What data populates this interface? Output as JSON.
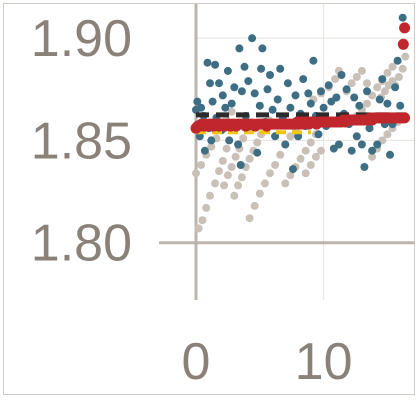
{
  "chart_data": {
    "type": "scatter",
    "title": "",
    "xlabel": "",
    "ylabel": "",
    "xlim": [
      -0.25,
      16.5
    ],
    "ylim": [
      1.7935,
      1.9167
    ],
    "x_ticks": [
      "0",
      "10"
    ],
    "y_ticks": [
      "1.80",
      "1.85",
      "1.90"
    ],
    "grid": true,
    "colors": {
      "blue": "#3d6e84",
      "gray": "#c9c1b8",
      "red": "#c0272d",
      "black": "#2b2b2b",
      "yellow": "#f0c419",
      "axis": "#bdb5ad",
      "grid": "#e6e3df",
      "text": "#8a8178"
    },
    "series": [
      {
        "style": "scatter",
        "color": "blue",
        "points": [
          [
            0.0,
            1.865
          ],
          [
            0.1,
            1.869
          ],
          [
            0.2,
            1.858
          ],
          [
            0.3,
            1.852
          ],
          [
            0.4,
            1.866
          ],
          [
            0.6,
            1.862
          ],
          [
            0.7,
            1.845
          ],
          [
            0.9,
            1.888
          ],
          [
            1.0,
            1.856
          ],
          [
            1.1,
            1.878
          ],
          [
            1.2,
            1.85
          ],
          [
            1.3,
            1.869
          ],
          [
            1.5,
            1.887
          ],
          [
            1.6,
            1.861
          ],
          [
            1.8,
            1.878
          ],
          [
            2.0,
            1.855
          ],
          [
            2.1,
            1.872
          ],
          [
            2.3,
            1.866
          ],
          [
            2.5,
            1.884
          ],
          [
            2.6,
            1.85
          ],
          [
            2.8,
            1.868
          ],
          [
            3.0,
            1.876
          ],
          [
            3.1,
            1.858
          ],
          [
            3.3,
            1.848
          ],
          [
            3.4,
            1.895
          ],
          [
            3.5,
            1.838
          ],
          [
            3.6,
            1.874
          ],
          [
            3.8,
            1.886
          ],
          [
            3.9,
            1.862
          ],
          [
            4.1,
            1.879
          ],
          [
            4.2,
            1.856
          ],
          [
            4.4,
            1.9
          ],
          [
            4.6,
            1.873
          ],
          [
            4.8,
            1.844
          ],
          [
            5.0,
            1.867
          ],
          [
            5.1,
            1.885
          ],
          [
            5.2,
            1.895
          ],
          [
            5.4,
            1.859
          ],
          [
            5.6,
            1.875
          ],
          [
            5.8,
            1.882
          ],
          [
            6.0,
            1.865
          ],
          [
            6.2,
            1.852
          ],
          [
            6.4,
            1.87
          ],
          [
            6.6,
            1.885
          ],
          [
            6.8,
            1.861
          ],
          [
            7.0,
            1.848
          ],
          [
            7.2,
            1.878
          ],
          [
            7.4,
            1.866
          ],
          [
            7.6,
            1.836
          ],
          [
            7.8,
            1.872
          ],
          [
            8.0,
            1.852
          ],
          [
            8.2,
            1.863
          ],
          [
            8.4,
            1.88
          ],
          [
            8.6,
            1.857
          ],
          [
            8.8,
            1.873
          ],
          [
            9.0,
            1.868
          ],
          [
            9.2,
            1.889
          ],
          [
            9.4,
            1.862
          ],
          [
            9.6,
            1.853
          ],
          [
            9.8,
            1.874
          ],
          [
            10.0,
            1.866
          ],
          [
            10.2,
            1.857
          ],
          [
            10.4,
            1.877
          ],
          [
            10.6,
            1.869
          ],
          [
            10.8,
            1.846
          ],
          [
            11.0,
            1.871
          ],
          [
            11.2,
            1.848
          ],
          [
            11.4,
            1.882
          ],
          [
            11.6,
            1.863
          ],
          [
            11.8,
            1.875
          ],
          [
            12.0,
            1.858
          ],
          [
            12.2,
            1.845
          ],
          [
            12.4,
            1.871
          ],
          [
            12.6,
            1.852
          ],
          [
            12.8,
            1.867
          ],
          [
            13.0,
            1.848
          ],
          [
            13.2,
            1.837
          ],
          [
            13.4,
            1.874
          ],
          [
            13.6,
            1.856
          ],
          [
            13.8,
            1.845
          ],
          [
            14.0,
            1.86
          ],
          [
            14.2,
            1.848
          ],
          [
            14.4,
            1.87
          ],
          [
            14.6,
            1.88
          ],
          [
            14.8,
            1.858
          ],
          [
            15.0,
            1.868
          ],
          [
            15.2,
            1.843
          ],
          [
            15.4,
            1.858
          ],
          [
            15.6,
            1.876
          ],
          [
            15.8,
            1.889
          ],
          [
            16.0,
            1.867
          ],
          [
            16.2,
            1.91
          ],
          [
            16.4,
            1.861
          ]
        ]
      },
      {
        "style": "scatter",
        "color": "gray",
        "points": [
          [
            0.2,
            1.807
          ],
          [
            0.5,
            1.811
          ],
          [
            0.8,
            1.817
          ],
          [
            1.1,
            1.823
          ],
          [
            1.5,
            1.829
          ],
          [
            1.8,
            1.835
          ],
          [
            2.1,
            1.84
          ],
          [
            2.4,
            1.846
          ],
          [
            0.0,
            1.834
          ],
          [
            0.4,
            1.838
          ],
          [
            0.8,
            1.843
          ],
          [
            1.2,
            1.847
          ],
          [
            1.6,
            1.851
          ],
          [
            2.0,
            1.856
          ],
          [
            2.4,
            1.86
          ],
          [
            2.8,
            1.864
          ],
          [
            2.2,
            1.828
          ],
          [
            2.5,
            1.833
          ],
          [
            2.8,
            1.837
          ],
          [
            3.1,
            1.842
          ],
          [
            3.4,
            1.846
          ],
          [
            3.7,
            1.851
          ],
          [
            3.0,
            1.823
          ],
          [
            3.3,
            1.828
          ],
          [
            3.6,
            1.832
          ],
          [
            3.9,
            1.837
          ],
          [
            4.2,
            1.841
          ],
          [
            4.5,
            1.845
          ],
          [
            4.8,
            1.849
          ],
          [
            5.1,
            1.853
          ],
          [
            5.4,
            1.857
          ],
          [
            5.7,
            1.86
          ],
          [
            4.2,
            1.812
          ],
          [
            4.6,
            1.818
          ],
          [
            5.0,
            1.824
          ],
          [
            5.4,
            1.829
          ],
          [
            5.8,
            1.834
          ],
          [
            6.2,
            1.838
          ],
          [
            6.6,
            1.843
          ],
          [
            7.0,
            1.848
          ],
          [
            7.4,
            1.852
          ],
          [
            7.8,
            1.856
          ],
          [
            7.0,
            1.829
          ],
          [
            7.4,
            1.833
          ],
          [
            7.8,
            1.837
          ],
          [
            8.2,
            1.841
          ],
          [
            8.6,
            1.845
          ],
          [
            9.0,
            1.849
          ],
          [
            9.4,
            1.853
          ],
          [
            8.6,
            1.834
          ],
          [
            9.0,
            1.838
          ],
          [
            9.4,
            1.842
          ],
          [
            9.8,
            1.845
          ],
          [
            9.2,
            1.87
          ],
          [
            9.8,
            1.873
          ],
          [
            10.4,
            1.876
          ],
          [
            10.9,
            1.88
          ],
          [
            11.2,
            1.884
          ],
          [
            11.8,
            1.874
          ],
          [
            12.2,
            1.878
          ],
          [
            12.6,
            1.881
          ],
          [
            13.0,
            1.884
          ],
          [
            13.4,
            1.878
          ],
          [
            12.6,
            1.862
          ],
          [
            13.0,
            1.865
          ],
          [
            13.4,
            1.868
          ],
          [
            13.8,
            1.872
          ],
          [
            14.2,
            1.876
          ],
          [
            14.6,
            1.879
          ],
          [
            15.0,
            1.883
          ],
          [
            15.4,
            1.886
          ],
          [
            15.8,
            1.889
          ],
          [
            14.5,
            1.871
          ],
          [
            14.8,
            1.874
          ],
          [
            15.1,
            1.877
          ],
          [
            15.4,
            1.879
          ],
          [
            13.8,
            1.842
          ],
          [
            14.2,
            1.846
          ],
          [
            14.6,
            1.85
          ],
          [
            15.0,
            1.853
          ],
          [
            15.4,
            1.856
          ],
          [
            15.8,
            1.859
          ],
          [
            15.6,
            1.877
          ],
          [
            15.9,
            1.881
          ],
          [
            16.2,
            1.885
          ],
          [
            16.4,
            1.891
          ]
        ]
      },
      {
        "style": "scatter",
        "color": "red",
        "points": [
          [
            0.0,
            1.856
          ],
          [
            0.15,
            1.857
          ],
          [
            0.3,
            1.857
          ],
          [
            0.45,
            1.858
          ],
          [
            0.6,
            1.857
          ],
          [
            0.75,
            1.858
          ],
          [
            0.9,
            1.857
          ],
          [
            1.05,
            1.858
          ],
          [
            1.2,
            1.858
          ],
          [
            1.35,
            1.857
          ],
          [
            1.5,
            1.858
          ],
          [
            1.65,
            1.858
          ],
          [
            1.8,
            1.857
          ],
          [
            1.95,
            1.858
          ],
          [
            2.1,
            1.858
          ],
          [
            2.25,
            1.857
          ],
          [
            2.4,
            1.858
          ],
          [
            2.55,
            1.858
          ],
          [
            2.7,
            1.857
          ],
          [
            2.85,
            1.858
          ],
          [
            3.0,
            1.858
          ],
          [
            3.15,
            1.857
          ],
          [
            3.3,
            1.858
          ],
          [
            3.45,
            1.858
          ],
          [
            3.6,
            1.858
          ],
          [
            3.75,
            1.858
          ],
          [
            3.9,
            1.857
          ],
          [
            4.05,
            1.858
          ],
          [
            4.2,
            1.858
          ],
          [
            4.35,
            1.858
          ],
          [
            4.5,
            1.858
          ],
          [
            4.65,
            1.857
          ],
          [
            4.8,
            1.858
          ],
          [
            4.95,
            1.858
          ],
          [
            5.1,
            1.858
          ],
          [
            5.25,
            1.858
          ],
          [
            5.4,
            1.858
          ],
          [
            5.55,
            1.857
          ],
          [
            5.7,
            1.858
          ],
          [
            5.85,
            1.858
          ],
          [
            6.0,
            1.858
          ],
          [
            6.15,
            1.858
          ],
          [
            6.3,
            1.858
          ],
          [
            6.45,
            1.858
          ],
          [
            6.6,
            1.858
          ],
          [
            6.75,
            1.858
          ],
          [
            6.9,
            1.858
          ],
          [
            7.05,
            1.858
          ],
          [
            7.2,
            1.858
          ],
          [
            7.35,
            1.858
          ],
          [
            7.5,
            1.858
          ],
          [
            7.65,
            1.858
          ],
          [
            7.8,
            1.858
          ],
          [
            7.95,
            1.859
          ],
          [
            8.1,
            1.858
          ],
          [
            8.25,
            1.859
          ],
          [
            8.4,
            1.858
          ],
          [
            8.55,
            1.859
          ],
          [
            8.7,
            1.859
          ],
          [
            8.85,
            1.858
          ],
          [
            9.0,
            1.859
          ],
          [
            9.15,
            1.859
          ],
          [
            9.3,
            1.859
          ],
          [
            9.45,
            1.858
          ],
          [
            9.6,
            1.859
          ],
          [
            9.75,
            1.859
          ],
          [
            9.9,
            1.859
          ],
          [
            10.05,
            1.859
          ],
          [
            10.2,
            1.859
          ],
          [
            10.35,
            1.859
          ],
          [
            10.5,
            1.859
          ],
          [
            10.65,
            1.859
          ],
          [
            10.8,
            1.859
          ],
          [
            10.95,
            1.859
          ],
          [
            11.1,
            1.859
          ],
          [
            11.25,
            1.859
          ],
          [
            11.4,
            1.859
          ],
          [
            11.55,
            1.86
          ],
          [
            11.7,
            1.859
          ],
          [
            11.85,
            1.86
          ],
          [
            12.0,
            1.86
          ],
          [
            12.15,
            1.86
          ],
          [
            12.3,
            1.86
          ],
          [
            12.45,
            1.86
          ],
          [
            12.6,
            1.86
          ],
          [
            12.75,
            1.86
          ],
          [
            12.9,
            1.86
          ],
          [
            13.05,
            1.86
          ],
          [
            13.2,
            1.86
          ],
          [
            13.35,
            1.86
          ],
          [
            13.5,
            1.86
          ],
          [
            13.65,
            1.861
          ],
          [
            13.8,
            1.86
          ],
          [
            13.95,
            1.861
          ],
          [
            14.1,
            1.861
          ],
          [
            14.25,
            1.861
          ],
          [
            14.4,
            1.861
          ],
          [
            14.55,
            1.861
          ],
          [
            14.7,
            1.861
          ],
          [
            14.85,
            1.861
          ],
          [
            15.0,
            1.861
          ],
          [
            15.15,
            1.861
          ],
          [
            15.3,
            1.861
          ],
          [
            15.45,
            1.861
          ],
          [
            15.6,
            1.861
          ],
          [
            15.75,
            1.861
          ],
          [
            15.9,
            1.861
          ],
          [
            16.05,
            1.861
          ],
          [
            16.2,
            1.861
          ],
          [
            16.35,
            1.861
          ],
          [
            16.25,
            1.897
          ],
          [
            16.35,
            1.905
          ]
        ]
      },
      {
        "style": "dashed-line",
        "color": "black",
        "points": [
          [
            0.0,
            1.8625
          ],
          [
            16.5,
            1.8625
          ]
        ]
      },
      {
        "style": "dashed-line",
        "color": "yellow",
        "points": [
          [
            0.0,
            1.854
          ],
          [
            9.0,
            1.854
          ]
        ]
      }
    ]
  }
}
